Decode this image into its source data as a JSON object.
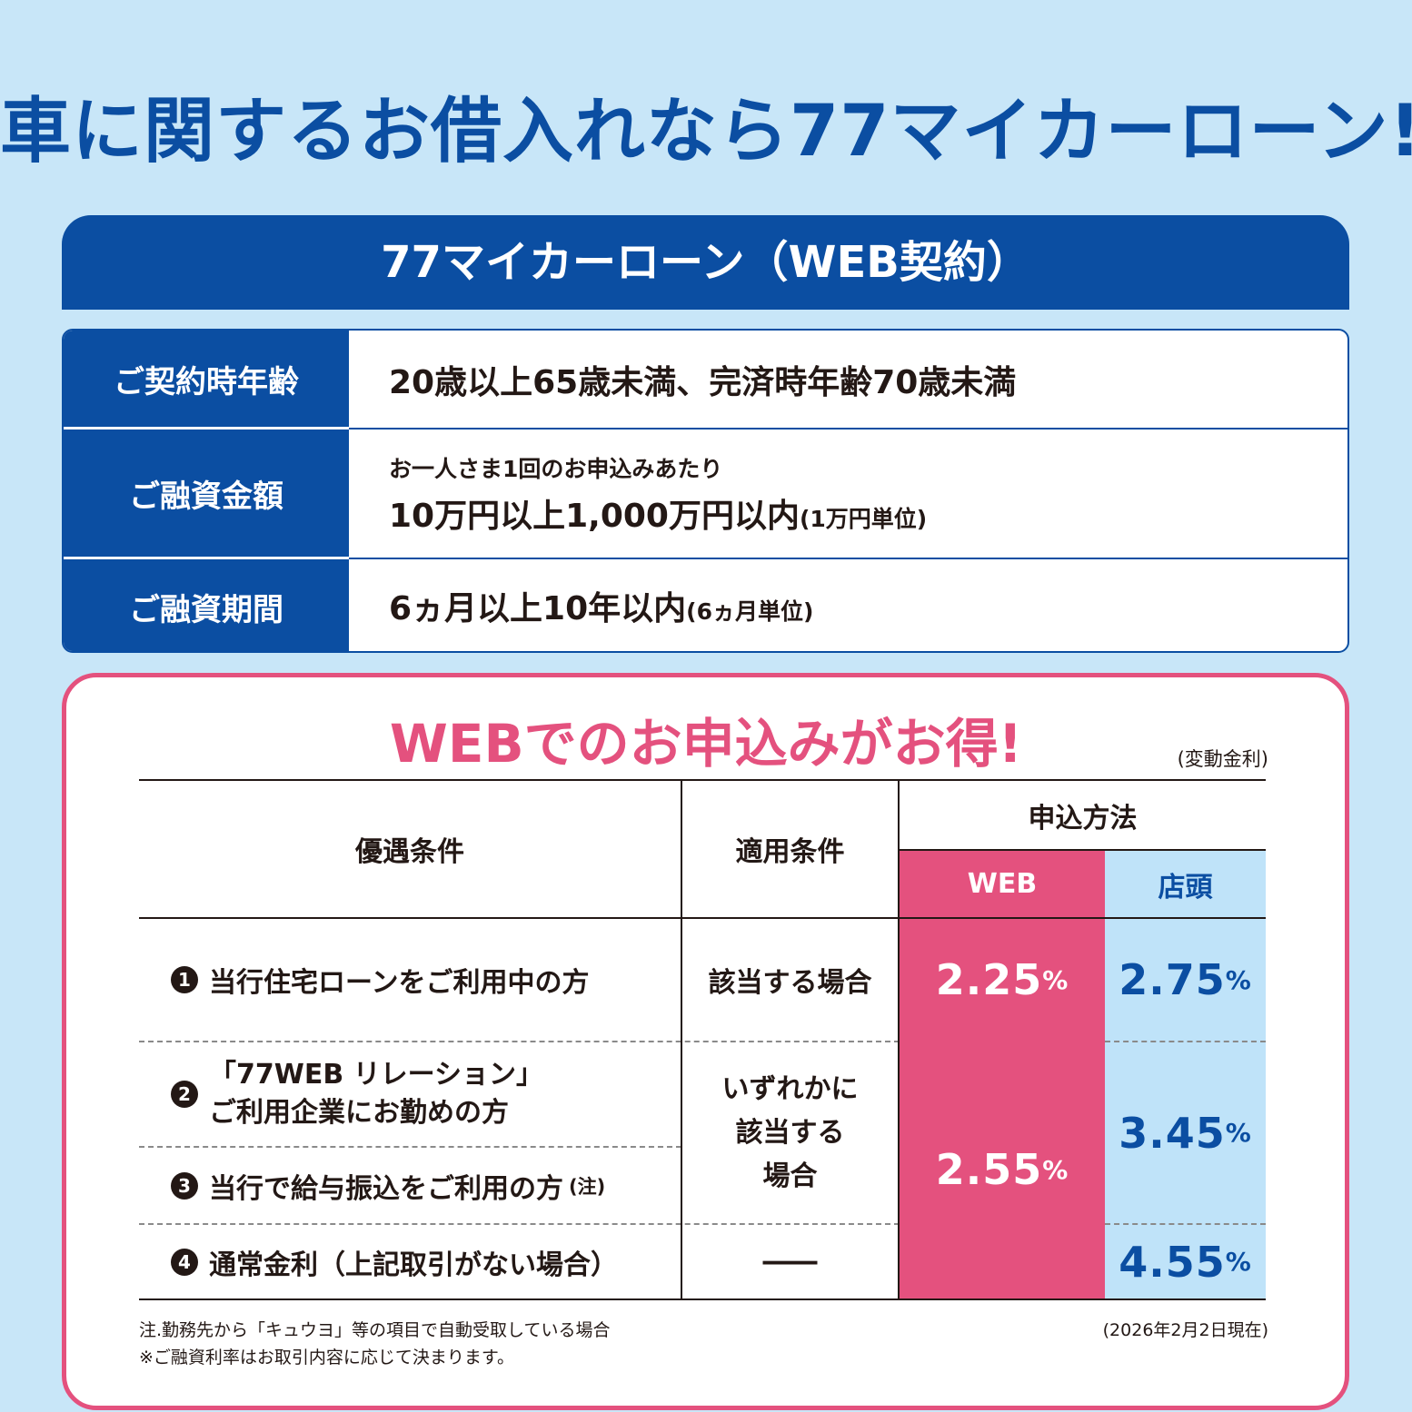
{
  "title": "車に関するお借入れなら77マイカーローン!",
  "product": {
    "header": "77マイカーローン（WEB契約）"
  },
  "spec": {
    "age_label": "ご契約時年齢",
    "age_value": "20歳以上65歳未満、完済時年齢70歳未満",
    "amount_label": "ご融資金額",
    "amount_sub": "お一人さま1回のお申込みあたり",
    "amount_value": "10万円以上1,000万円以内",
    "amount_unit": "(1万円単位)",
    "period_label": "ご融資期間",
    "period_value": "6ヵ月以上10年以内",
    "period_unit": "(6ヵ月単位)"
  },
  "web": {
    "title": "WEBでのお申込みがお得!",
    "rate_type": "(変動金利)",
    "headers": {
      "condition": "優遇条件",
      "applicable": "適用条件",
      "method": "申込方法",
      "web": "WEB",
      "store": "店頭"
    },
    "rows": [
      {
        "num": "1",
        "label": "当行住宅ローンをご利用中の方",
        "applicable": "該当する場合",
        "web_rate": "2.25",
        "store_rate": "2.75"
      },
      {
        "num": "2",
        "label_line1": "「77WEB リレーション」",
        "label_line2": "ご利用企業にお勤めの方"
      },
      {
        "num": "3",
        "label": "当行で給与振込をご利用の方",
        "note": "(注)"
      },
      {
        "num": "4",
        "label": "通常金利（上記取引がない場合）",
        "applicable": "――",
        "store_rate": "4.55"
      }
    ],
    "group_applicable": [
      "いずれかに",
      "該当する",
      "場合"
    ],
    "group_web_rate": "2.55",
    "group_store_rate": "3.45",
    "pct": "%",
    "footnote1": "注.勤務先から「キュウヨ」等の項目で自動受取している場合",
    "footnote2": "※ご融資利率はお取引内容に応じて決まります。",
    "as_of": "(2026年2月2日現在)"
  },
  "colors": {
    "navy": "#0b4ea2",
    "pink": "#e4517e",
    "light_blue": "#bfe3f9",
    "background": "#c8e6f8"
  }
}
